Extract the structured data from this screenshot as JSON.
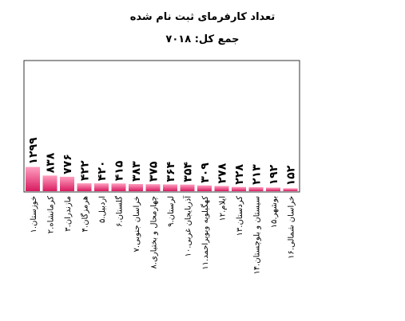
{
  "chart_data": {
    "type": "bar",
    "title": "تعداد کارفرمای ثبت نام شده",
    "subtitle": "جمع کل: ۷۰۱۸",
    "categories": [
      "۱.خوزستان",
      "۲.کرمانشاه",
      "۳.مازندران",
      "۴.هرمزگان",
      "۵.اردبیل",
      "۶.گلستان",
      "۷.خراسان جنوبی",
      "۸.چهارمحال و بختیاری",
      "۹.لرستان",
      "۱۰.آذربایجان غربی",
      "۱۱.کهگیلویه وبویراحمد",
      "۱۲.ایلام",
      "۱۳.کردستان",
      "۱۴.سیستان و بلوچستان",
      "۱۵.بوشهر",
      "۱۶.خراسان شمالی"
    ],
    "values": [
      1299,
      838,
      776,
      422,
      420,
      415,
      383,
      375,
      364,
      354,
      309,
      278,
      228,
      213,
      192,
      152
    ],
    "value_labels": [
      "۱۲۹۹",
      "۸۳۸",
      "۷۷۶",
      "۴۲۲",
      "۴۲۰",
      "۴۱۵",
      "۳۸۳",
      "۳۷۵",
      "۳۶۴",
      "۳۵۴",
      "۳۰۹",
      "۲۷۸",
      "۲۲۸",
      "۲۱۳",
      "۱۹۲",
      "۱۵۲"
    ],
    "ylim": [
      0,
      7018
    ],
    "grid": false,
    "legend": "none",
    "colors": {
      "bar_top": "#ff9fc0",
      "bar_bottom": "#d81b60",
      "frame": "#333333"
    }
  }
}
